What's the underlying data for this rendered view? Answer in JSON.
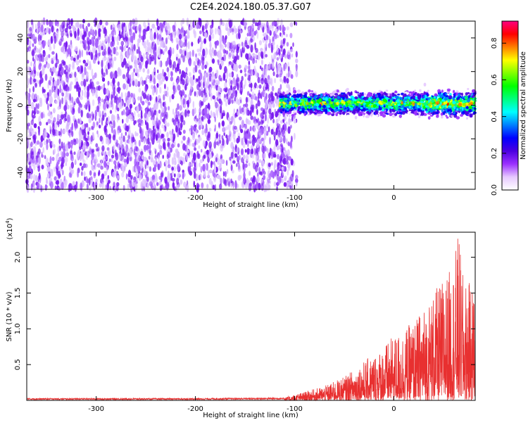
{
  "title": "C2E4.2024.180.05.37.G07",
  "chart_data": [
    {
      "type": "heatmap",
      "title": "",
      "xlabel": "Height of straight line (km)",
      "ylabel": "Frequency (Hz)",
      "xlim": [
        -370,
        82
      ],
      "ylim": [
        -50,
        50
      ],
      "x_ticks": [
        -300,
        -200,
        -100,
        0
      ],
      "y_ticks": [
        -40,
        -20,
        0,
        20,
        40
      ],
      "colorbar": {
        "label": "Normalized spectral amplitude",
        "range": [
          0,
          0.92
        ],
        "ticks": [
          0.0,
          0.2,
          0.4,
          0.6,
          0.8
        ],
        "colors": [
          "#ffffff",
          "#e6c8ff",
          "#9b30ff",
          "#4b00e0",
          "#0000ff",
          "#0080ff",
          "#00ffff",
          "#00ff80",
          "#00ff00",
          "#80ff00",
          "#ffff00",
          "#ff8000",
          "#ff0000",
          "#ff0080"
        ]
      },
      "regions": [
        {
          "name": "",
          "x_range": [
            -370,
            -100
          ],
          "frequency_range": [
            -50,
            50
          ],
          "amplitude": 0.1
        },
        {
          "name": "",
          "x_range": [
            -115,
            82
          ],
          "center_frequency": 1,
          "half_width": 5,
          "amplitude": 0.4
        }
      ]
    },
    {
      "type": "line",
      "title": "",
      "xlabel": "Height of straight line (km)",
      "ylabel": "SNR (10 * v/v)",
      "y_scale_label": "(x10",
      "y_scale_exponent": "4",
      "y_scale_close": ")",
      "xlim": [
        -370,
        82
      ],
      "ylim": [
        0,
        23500
      ],
      "x_ticks": [
        -300,
        -200,
        -100,
        0
      ],
      "y_ticks": [
        0.5,
        1.0,
        1.5,
        2.0
      ],
      "y_tick_labels": [
        "0.5",
        "1.0",
        "1.5",
        "2.0"
      ],
      "color": "#e83030",
      "envelope": [
        {
          "x": -370,
          "y": 300
        },
        {
          "x": -200,
          "y": 300
        },
        {
          "x": -110,
          "y": 400
        },
        {
          "x": -90,
          "y": 1200
        },
        {
          "x": -70,
          "y": 2000
        },
        {
          "x": -50,
          "y": 3300
        },
        {
          "x": -30,
          "y": 5500
        },
        {
          "x": -15,
          "y": 7000
        },
        {
          "x": 0,
          "y": 9000
        },
        {
          "x": 20,
          "y": 11000
        },
        {
          "x": 40,
          "y": 15000
        },
        {
          "x": 60,
          "y": 19000
        },
        {
          "x": 65,
          "y": 23500
        },
        {
          "x": 70,
          "y": 17000
        },
        {
          "x": 82,
          "y": 16000
        }
      ]
    }
  ]
}
